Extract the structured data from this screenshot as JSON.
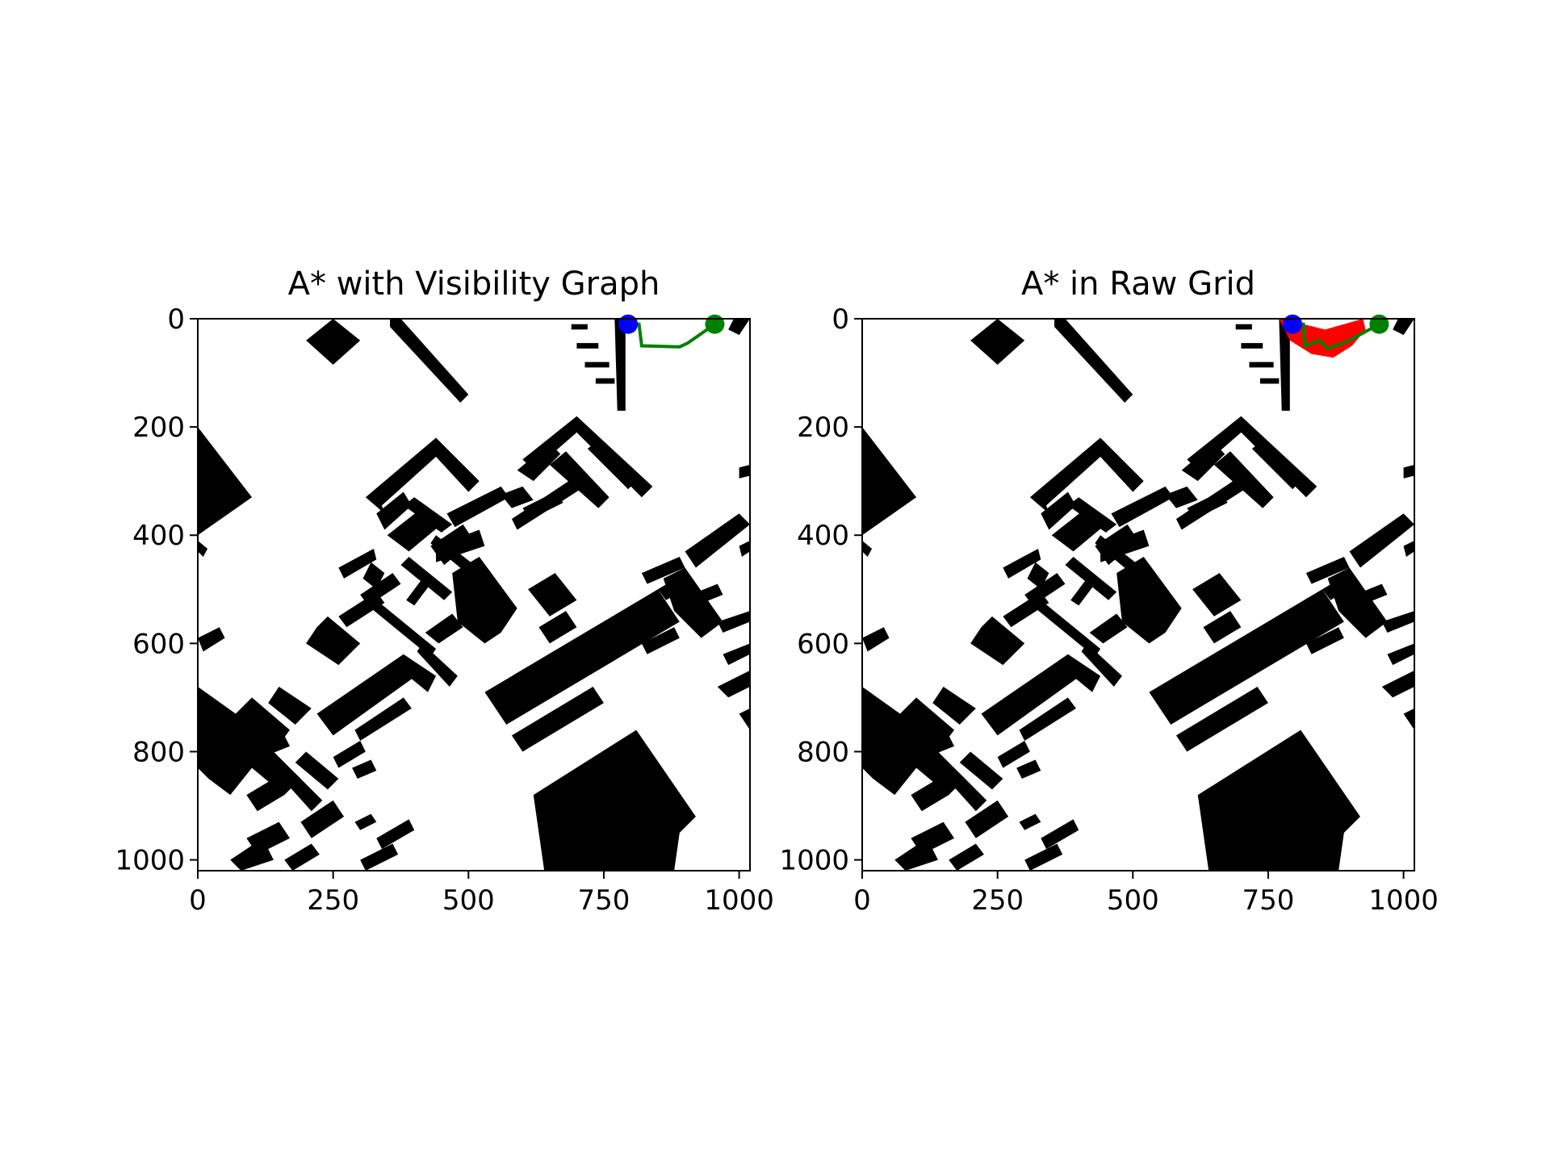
{
  "colors": {
    "background": "#ffffff",
    "obstacle": "#000000",
    "path_green": "#008000",
    "start_blue": "#0000ff",
    "explored_red": "#ff0000"
  },
  "chart_data": [
    {
      "type": "heatmap",
      "title": "A* with Visibility Graph",
      "xlabel": "",
      "ylabel": "",
      "xlim": [
        0,
        1020
      ],
      "ylim": [
        1020,
        0
      ],
      "xticks": [
        0,
        250,
        500,
        750,
        1000
      ],
      "yticks": [
        0,
        200,
        400,
        600,
        800,
        1000
      ],
      "xtick_labels": [
        "0",
        "250",
        "500",
        "750",
        "1000"
      ],
      "ytick_labels": [
        "0",
        "200",
        "400",
        "600",
        "800",
        "1000"
      ],
      "start": {
        "x": 795,
        "y": 10
      },
      "goal": {
        "x": 955,
        "y": 10
      },
      "path": {
        "name": "path",
        "x": [
          795,
          815,
          820,
          890,
          905,
          955
        ],
        "y": [
          10,
          10,
          50,
          52,
          45,
          10
        ]
      }
    },
    {
      "type": "heatmap",
      "title": "A* in Raw Grid",
      "xlabel": "",
      "ylabel": "",
      "xlim": [
        0,
        1020
      ],
      "ylim": [
        1020,
        0
      ],
      "xticks": [
        0,
        250,
        500,
        750,
        1000
      ],
      "yticks": [
        0,
        200,
        400,
        600,
        800,
        1000
      ],
      "xtick_labels": [
        "0",
        "250",
        "500",
        "750",
        "1000"
      ],
      "ytick_labels": [
        "0",
        "200",
        "400",
        "600",
        "800",
        "1000"
      ],
      "start": {
        "x": 795,
        "y": 10
      },
      "goal": {
        "x": 955,
        "y": 10
      },
      "explored": {
        "name": "explored",
        "x": [
          770,
          790,
          830,
          870,
          905,
          930,
          925,
          890,
          855,
          815,
          780
        ],
        "y": [
          0,
          40,
          65,
          72,
          50,
          20,
          0,
          10,
          20,
          10,
          0
        ]
      },
      "path": {
        "name": "path",
        "x": [
          795,
          815,
          818,
          845,
          860,
          880,
          900,
          955
        ],
        "y": [
          10,
          10,
          50,
          40,
          55,
          48,
          40,
          10
        ]
      }
    }
  ]
}
